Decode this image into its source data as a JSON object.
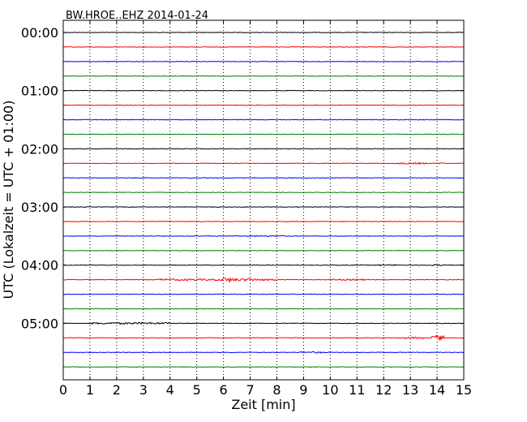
{
  "chart_data": {
    "type": "line",
    "title": "BW.HROE..EHZ 2014-01-24",
    "xlabel": "Zeit  [min]",
    "ylabel": "UTC (Lokalzeit = UTC + 01:00)",
    "xlim": [
      0,
      15
    ],
    "x_ticks": [
      "0",
      "1",
      "2",
      "3",
      "4",
      "5",
      "6",
      "7",
      "8",
      "9",
      "10",
      "11",
      "12",
      "13",
      "14",
      "15"
    ],
    "y_tick_labels": [
      "00:00",
      "01:00",
      "02:00",
      "03:00",
      "04:00",
      "05:00"
    ],
    "grid": "vertical dotted",
    "trace_colors": [
      "#000000",
      "#ff0000",
      "#0000ff",
      "#008000"
    ],
    "trace_count": 24,
    "trace_interval_min": 15,
    "events": [
      {
        "trace": 9,
        "start_min": 12.4,
        "end_min": 13.6,
        "strength": 0.6
      },
      {
        "trace": 9,
        "start_min": 14.0,
        "end_min": 14.3,
        "strength": 0.5
      },
      {
        "trace": 14,
        "start_min": 6.8,
        "end_min": 8.3,
        "strength": 0.4
      },
      {
        "trace": 16,
        "start_min": 11.8,
        "end_min": 12.6,
        "strength": 0.5
      },
      {
        "trace": 16,
        "start_min": 13.8,
        "end_min": 14.2,
        "strength": 0.5
      },
      {
        "trace": 17,
        "start_min": 3.5,
        "end_min": 8.0,
        "strength": 0.7
      },
      {
        "trace": 17,
        "start_min": 5.9,
        "end_min": 6.4,
        "strength": 1.6
      },
      {
        "trace": 17,
        "start_min": 6.4,
        "end_min": 7.2,
        "strength": 1.0
      },
      {
        "trace": 17,
        "start_min": 10.0,
        "end_min": 11.3,
        "strength": 0.5
      },
      {
        "trace": 20,
        "start_min": 1.0,
        "end_min": 4.0,
        "strength": 0.7
      },
      {
        "trace": 21,
        "start_min": 12.8,
        "end_min": 13.5,
        "strength": 0.7
      },
      {
        "trace": 21,
        "start_min": 13.8,
        "end_min": 14.3,
        "strength": 1.8
      },
      {
        "trace": 22,
        "start_min": 8.8,
        "end_min": 9.8,
        "strength": 0.6
      }
    ]
  }
}
